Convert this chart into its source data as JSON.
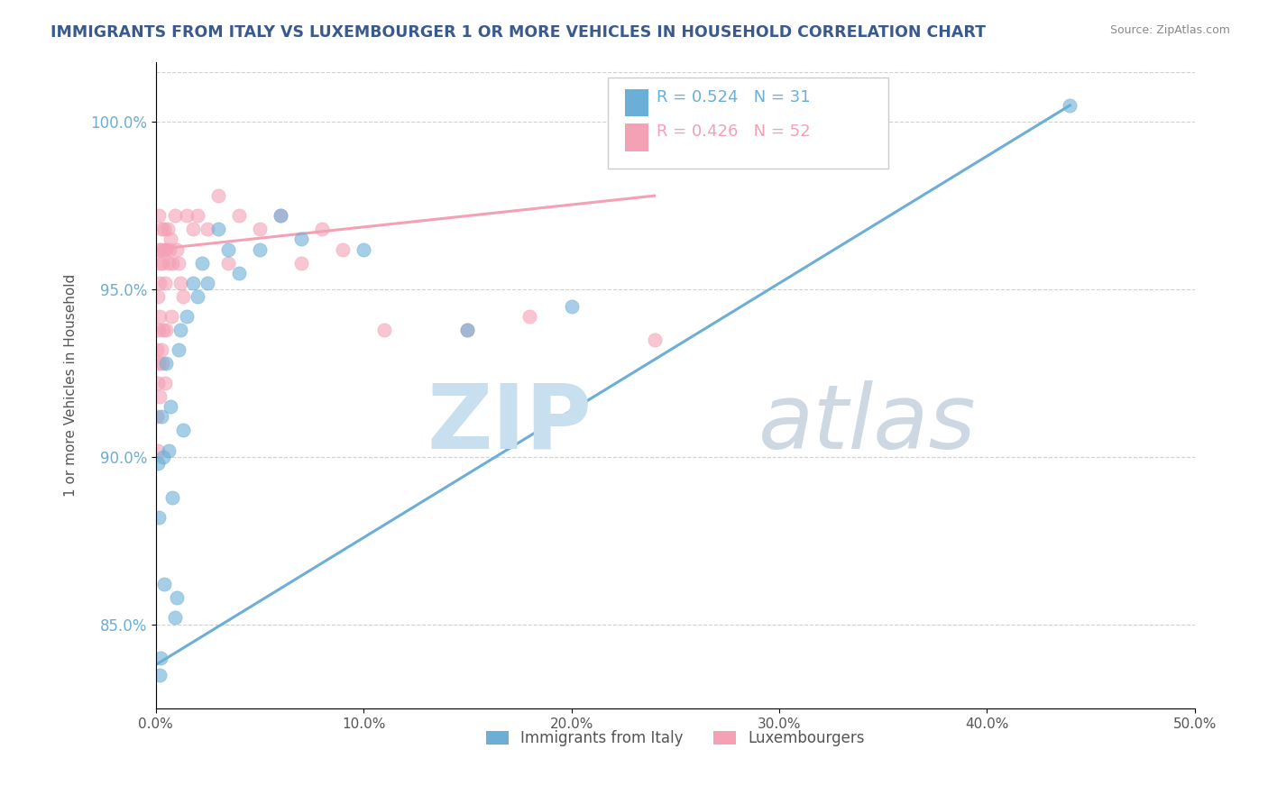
{
  "title": "IMMIGRANTS FROM ITALY VS LUXEMBOURGER 1 OR MORE VEHICLES IN HOUSEHOLD CORRELATION CHART",
  "source": "Source: ZipAtlas.com",
  "ylabel": "1 or more Vehicles in Household",
  "xlim": [
    0.0,
    50.0
  ],
  "ylim": [
    82.5,
    101.8
  ],
  "blue_label": "Immigrants from Italy",
  "pink_label": "Luxembourgers",
  "blue_r": "R = 0.524",
  "blue_n": "N = 31",
  "pink_r": "R = 0.426",
  "pink_n": "N = 52",
  "blue_color": "#6baed6",
  "pink_color": "#f4a0b5",
  "blue_scatter": [
    [
      0.08,
      89.8
    ],
    [
      0.12,
      88.2
    ],
    [
      0.18,
      83.5
    ],
    [
      0.22,
      84.0
    ],
    [
      0.28,
      91.2
    ],
    [
      0.35,
      90.0
    ],
    [
      0.4,
      86.2
    ],
    [
      0.5,
      92.8
    ],
    [
      0.6,
      90.2
    ],
    [
      0.7,
      91.5
    ],
    [
      0.8,
      88.8
    ],
    [
      0.9,
      85.2
    ],
    [
      1.0,
      85.8
    ],
    [
      1.1,
      93.2
    ],
    [
      1.2,
      93.8
    ],
    [
      1.3,
      90.8
    ],
    [
      1.5,
      94.2
    ],
    [
      1.8,
      95.2
    ],
    [
      2.0,
      94.8
    ],
    [
      2.2,
      95.8
    ],
    [
      2.5,
      95.2
    ],
    [
      3.0,
      96.8
    ],
    [
      3.5,
      96.2
    ],
    [
      4.0,
      95.5
    ],
    [
      5.0,
      96.2
    ],
    [
      6.0,
      97.2
    ],
    [
      7.0,
      96.5
    ],
    [
      10.0,
      96.2
    ],
    [
      15.0,
      93.8
    ],
    [
      20.0,
      94.5
    ],
    [
      44.0,
      100.5
    ]
  ],
  "pink_scatter": [
    [
      0.05,
      91.2
    ],
    [
      0.07,
      93.2
    ],
    [
      0.08,
      90.2
    ],
    [
      0.09,
      92.2
    ],
    [
      0.1,
      94.8
    ],
    [
      0.12,
      92.8
    ],
    [
      0.13,
      96.2
    ],
    [
      0.14,
      97.2
    ],
    [
      0.15,
      93.8
    ],
    [
      0.16,
      91.8
    ],
    [
      0.18,
      95.2
    ],
    [
      0.19,
      95.8
    ],
    [
      0.2,
      94.2
    ],
    [
      0.22,
      96.2
    ],
    [
      0.25,
      96.8
    ],
    [
      0.28,
      93.2
    ],
    [
      0.3,
      95.8
    ],
    [
      0.32,
      92.8
    ],
    [
      0.35,
      93.8
    ],
    [
      0.38,
      96.8
    ],
    [
      0.4,
      96.2
    ],
    [
      0.42,
      92.2
    ],
    [
      0.45,
      95.2
    ],
    [
      0.48,
      93.8
    ],
    [
      0.5,
      96.2
    ],
    [
      0.55,
      96.8
    ],
    [
      0.6,
      95.8
    ],
    [
      0.65,
      96.2
    ],
    [
      0.7,
      96.5
    ],
    [
      0.75,
      94.2
    ],
    [
      0.8,
      95.8
    ],
    [
      0.9,
      97.2
    ],
    [
      1.0,
      96.2
    ],
    [
      1.1,
      95.8
    ],
    [
      1.2,
      95.2
    ],
    [
      1.3,
      94.8
    ],
    [
      1.5,
      97.2
    ],
    [
      1.8,
      96.8
    ],
    [
      2.0,
      97.2
    ],
    [
      2.5,
      96.8
    ],
    [
      3.0,
      97.8
    ],
    [
      3.5,
      95.8
    ],
    [
      4.0,
      97.2
    ],
    [
      5.0,
      96.8
    ],
    [
      6.0,
      97.2
    ],
    [
      7.0,
      95.8
    ],
    [
      8.0,
      96.8
    ],
    [
      9.0,
      96.2
    ],
    [
      11.0,
      93.8
    ],
    [
      15.0,
      93.8
    ],
    [
      18.0,
      94.2
    ],
    [
      24.0,
      93.5
    ]
  ],
  "blue_trendline": [
    [
      0.0,
      83.8
    ],
    [
      44.0,
      100.5
    ]
  ],
  "pink_trendline": [
    [
      0.0,
      96.2
    ],
    [
      24.0,
      97.8
    ]
  ],
  "yticks": [
    85.0,
    90.0,
    95.0,
    100.0
  ],
  "ytick_labels": [
    "85.0%",
    "90.0%",
    "95.0%",
    "100.0%"
  ],
  "xticks": [
    0.0,
    10.0,
    20.0,
    30.0,
    40.0,
    50.0
  ],
  "xtick_labels": [
    "0.0%",
    "10.0%",
    "20.0%",
    "30.0%",
    "40.0%",
    "50.0%"
  ],
  "bg_color": "#ffffff",
  "grid_color": "#cccccc",
  "watermark_zip": "ZIP",
  "watermark_atlas": "atlas",
  "watermark_color": "#c8dff0"
}
